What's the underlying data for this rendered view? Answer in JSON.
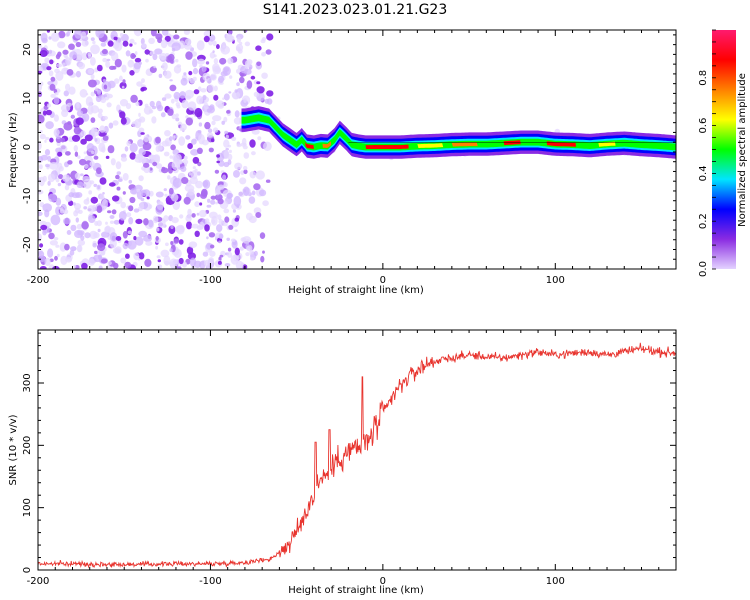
{
  "figure_title": "S141.2023.023.01.21.G23",
  "chart_data": [
    {
      "type": "heatmap",
      "xlabel": "Height of straight line (km)",
      "ylabel": "Frequency (Hz)",
      "xlim": [
        -200,
        170
      ],
      "ylim": [
        -25,
        24
      ],
      "xticks": [
        -200,
        -100,
        0,
        100
      ],
      "yticks": [
        -20,
        -10,
        0,
        10,
        20
      ],
      "colorbar": {
        "label": "Normalized spectral amplitude",
        "range": [
          0,
          1
        ],
        "ticks": [
          "0.0",
          "0.2",
          "0.4",
          "0.6",
          "0.8"
        ],
        "colors": [
          "#e4d2ff",
          "#8a2be2",
          "#0000ff",
          "#00e5ff",
          "#00ff00",
          "#ffff00",
          "#ff8000",
          "#ff0000",
          "#ff1a6e"
        ]
      },
      "noise_region": {
        "x_range": [
          -200,
          -65
        ],
        "freq_range": [
          -25,
          24
        ],
        "colors": [
          "#e6d8ff",
          "#d0b6ff",
          "#a86bf0",
          "#7f1fe6"
        ]
      },
      "ridge": {
        "x": [
          -80,
          -72,
          -66,
          -62,
          -58,
          -54,
          -50,
          -47,
          -44,
          -40,
          -36,
          -32,
          -28,
          -25,
          -22,
          -18,
          -14,
          -10,
          -5,
          0,
          10,
          20,
          30,
          40,
          50,
          60,
          70,
          80,
          90,
          100,
          110,
          120,
          130,
          140,
          150,
          160,
          170
        ],
        "freq": [
          5.5,
          6,
          5.5,
          4,
          2.5,
          1.5,
          0.5,
          1.5,
          0.2,
          0.0,
          0.3,
          0.2,
          1.5,
          3.0,
          2.0,
          0.5,
          0.2,
          0.0,
          0.0,
          0.0,
          0.0,
          0.2,
          0.3,
          0.5,
          0.6,
          0.6,
          0.8,
          1.0,
          1.0,
          0.6,
          0.5,
          0.3,
          0.6,
          0.8,
          0.5,
          0.3,
          0.0
        ]
      }
    },
    {
      "type": "line",
      "xlabel": "Height of straight line (km)",
      "ylabel": "SNR (10 * v/v)",
      "xlim": [
        -200,
        170
      ],
      "ylim": [
        0,
        385
      ],
      "xticks": [
        -200,
        -100,
        0,
        100
      ],
      "yticks": [
        0,
        100,
        200,
        300
      ],
      "color": "#e8342e",
      "series": [
        {
          "x": [
            -200,
            -180,
            -160,
            -140,
            -120,
            -100,
            -80,
            -65,
            -55,
            -50,
            -45,
            -42,
            -40,
            -38,
            -35,
            -32,
            -28,
            -25,
            -20,
            -16,
            -12,
            -8,
            -4,
            0,
            5,
            10,
            15,
            20,
            25,
            30,
            40,
            50,
            60,
            70,
            80,
            90,
            100,
            110,
            120,
            130,
            140,
            150,
            160,
            170
          ],
          "y": [
            10,
            10,
            9,
            9,
            10,
            10,
            12,
            18,
            40,
            60,
            90,
            110,
            120,
            140,
            150,
            155,
            170,
            180,
            190,
            195,
            200,
            210,
            230,
            250,
            275,
            295,
            310,
            320,
            330,
            335,
            340,
            345,
            342,
            340,
            345,
            350,
            345,
            348,
            350,
            345,
            350,
            355,
            350,
            348
          ]
        }
      ],
      "spikes": [
        {
          "x": -39,
          "y": 205
        },
        {
          "x": -31,
          "y": 225
        },
        {
          "x": -12,
          "y": 310
        }
      ]
    }
  ]
}
